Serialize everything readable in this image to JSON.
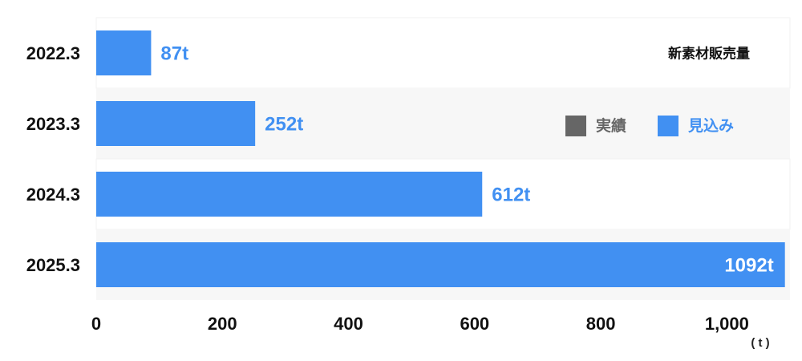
{
  "chart_data": {
    "type": "bar",
    "orientation": "horizontal",
    "title": "新素材販売量",
    "categories": [
      "2022.3",
      "2023.3",
      "2024.3",
      "2025.3"
    ],
    "series": [
      {
        "name": "実績",
        "color": "#666666",
        "values": [
          null,
          null,
          null,
          null
        ]
      },
      {
        "name": "見込み",
        "color": "#4190f2",
        "values": [
          87,
          252,
          612,
          1092
        ],
        "value_labels": [
          "87t",
          "252t",
          "612t",
          "1092t"
        ]
      }
    ],
    "xlim": [
      0,
      1100
    ],
    "xticks": [
      0,
      200,
      400,
      600,
      800,
      {
        "value": 1000,
        "label": "1,000"
      }
    ],
    "x_label": "( t )"
  }
}
